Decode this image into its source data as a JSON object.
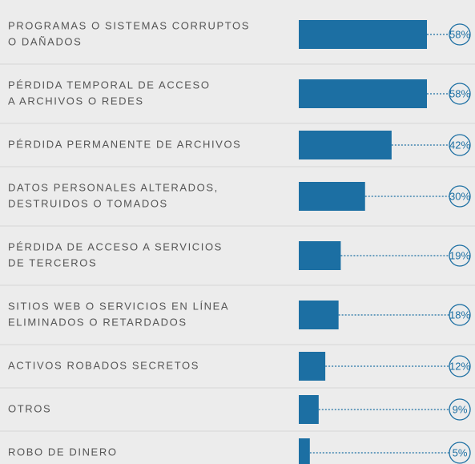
{
  "chart_data": {
    "type": "bar",
    "orientation": "horizontal",
    "color": "#1c6fa3",
    "categories": [
      [
        "PROGRAMAS O SISTEMAS CORRUPTOS",
        "O DAÑADOS"
      ],
      [
        "PÉRDIDA TEMPORAL DE ACCESO",
        "A ARCHIVOS O REDES"
      ],
      [
        "PÉRDIDA PERMANENTE DE ARCHIVOS"
      ],
      [
        "DATOS PERSONALES ALTERADOS,",
        "DESTRUIDOS O TOMADOS"
      ],
      [
        "PÉRDIDA DE ACCESO A SERVICIOS",
        "DE TERCEROS"
      ],
      [
        "SITIOS WEB O SERVICIOS EN LÍNEA",
        "ELIMINADOS O RETARDADOS"
      ],
      [
        "ACTIVOS ROBADOS SECRETOS"
      ],
      [
        "OTROS"
      ],
      [
        "ROBO DE DINERO"
      ]
    ],
    "values": [
      58,
      58,
      42,
      30,
      19,
      18,
      12,
      9,
      5
    ],
    "value_labels": [
      "58%",
      "58%",
      "42%",
      "30%",
      "19%",
      "18%",
      "12%",
      "9%",
      "5%"
    ]
  }
}
